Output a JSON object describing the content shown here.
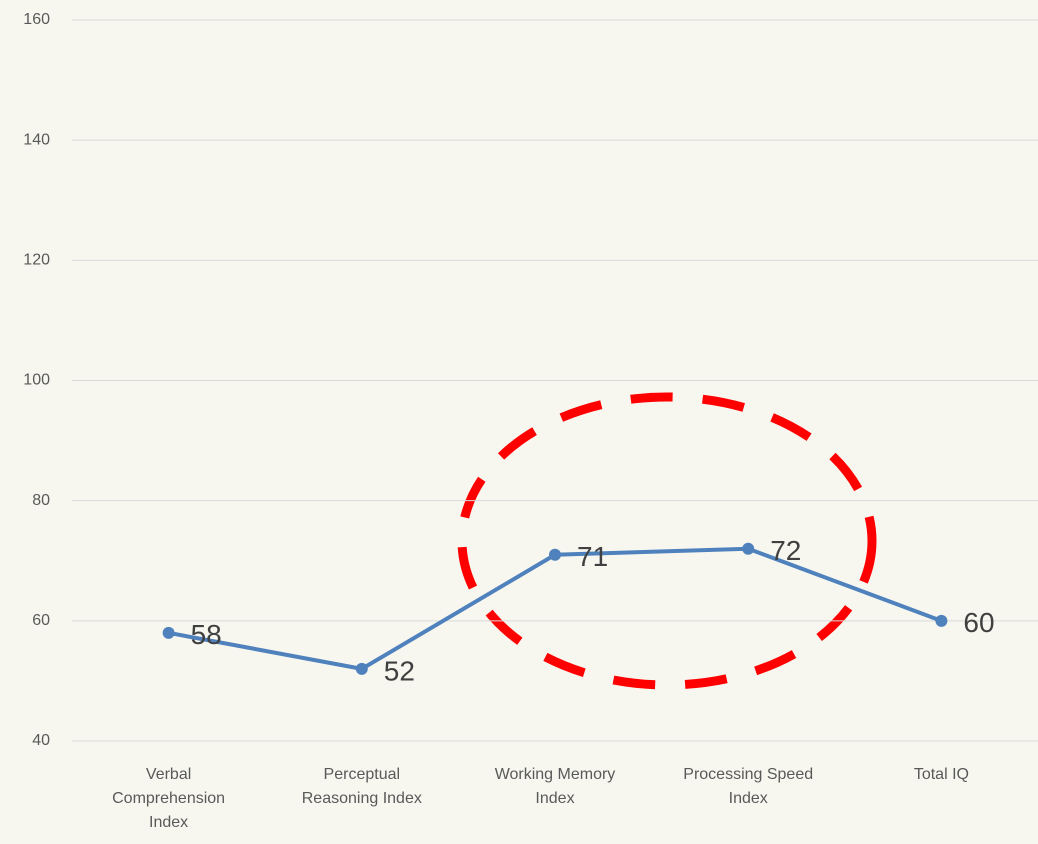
{
  "chart_data": {
    "type": "line",
    "categories": [
      "Verbal Comprehension Index",
      "Perceptual Reasoning Index",
      "Working Memory Index",
      "Processing Speed Index",
      "Total IQ"
    ],
    "series": [
      {
        "color": "#4f81bd",
        "values": [
          58,
          52,
          71,
          72,
          60
        ]
      }
    ],
    "ylim": [
      40,
      160
    ],
    "yticks": [
      40,
      60,
      80,
      100,
      120,
      140,
      160
    ],
    "grid": true
  }
}
